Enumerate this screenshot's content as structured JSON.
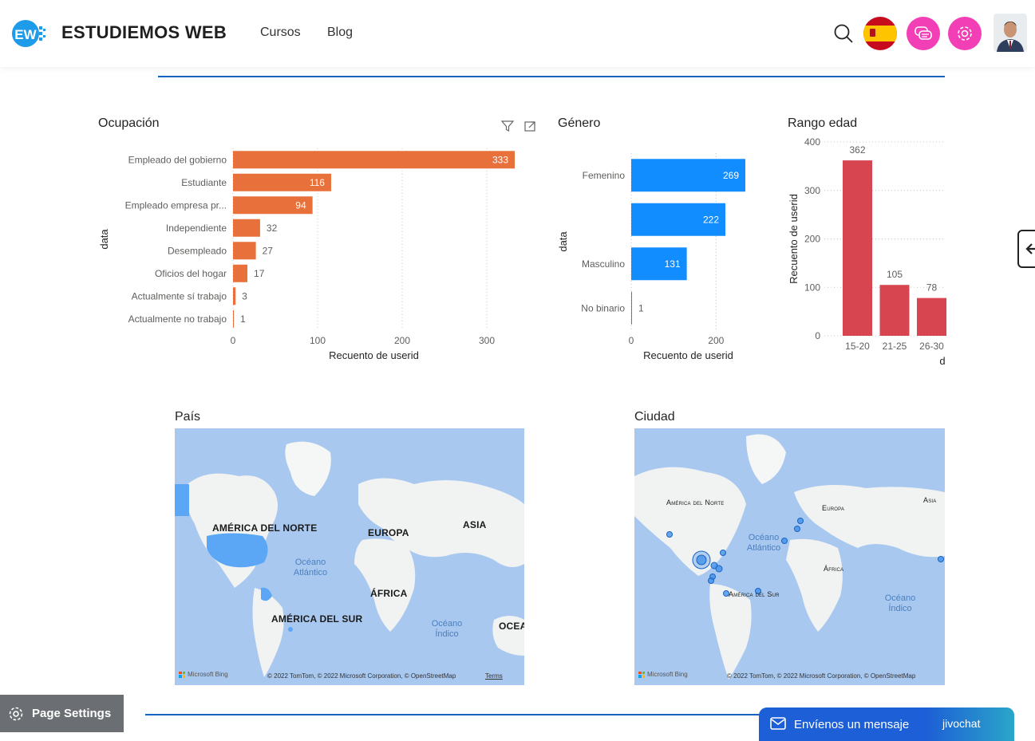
{
  "header": {
    "logo_text": "EW",
    "brand": "ESTUDIEMOS WEB",
    "nav": [
      {
        "label": "Cursos"
      },
      {
        "label": "Blog"
      }
    ],
    "icons": [
      "search-icon",
      "spain-flag-icon",
      "chat-icon",
      "settings-icon"
    ],
    "accent_pink": "#f23fb5"
  },
  "visuals": {
    "ocupacion": {
      "title": "Ocupación",
      "chart_data": {
        "type": "bar",
        "orientation": "horizontal",
        "categories": [
          "Empleado del gobierno",
          "Estudiante",
          "Empleado empresa pr...",
          "Independiente",
          "Desempleado",
          "Oficios del hogar",
          "Actualmente sí trabajo",
          "Actualmente no trabajo"
        ],
        "values": [
          333,
          116,
          94,
          32,
          27,
          17,
          3,
          1
        ],
        "xlabel": "Recuento de userid",
        "ylabel": "data",
        "xlim": [
          0,
          333
        ],
        "xticks": [
          0,
          100,
          200,
          300
        ],
        "color": "#e8703a"
      }
    },
    "genero": {
      "title": "Género",
      "chart_data": {
        "type": "bar",
        "orientation": "horizontal",
        "categories": [
          "Femenino",
          "",
          "Masculino",
          "No binario"
        ],
        "values": [
          269,
          222,
          131,
          1
        ],
        "xlabel": "Recuento de userid",
        "ylabel": "data",
        "xlim": [
          0,
          269
        ],
        "xticks": [
          0,
          200
        ],
        "color": "#118dff"
      }
    },
    "rango_edad": {
      "title": "Rango edad",
      "chart_data": {
        "type": "bar",
        "orientation": "vertical",
        "categories": [
          "15-20",
          "21-25",
          "26-30"
        ],
        "values": [
          362,
          105,
          78
        ],
        "ylabel": "Recuento de userid",
        "xlabel": "d",
        "ylim": [
          0,
          400
        ],
        "yticks": [
          0,
          100,
          200,
          300,
          400
        ],
        "color": "#d64550"
      }
    },
    "pais": {
      "title": "País",
      "labels": {
        "na": "AMÉRICA DEL NORTE",
        "eu": "EUROPA",
        "as": "ASIA",
        "af": "ÁFRICA",
        "sa": "AMÉRICA DEL SUR",
        "oc": "OCEA",
        "atl": "Océano Atlántico",
        "ind": "Océano Índico"
      },
      "attribution": "© 2022 TomTom, © 2022 Microsoft Corporation, © OpenStreetMap",
      "terms": "Terms",
      "bing": "Microsoft Bing"
    },
    "ciudad": {
      "title": "Ciudad",
      "labels": {
        "na": "América del Norte",
        "eu": "Europa",
        "as": "Asia",
        "af": "África",
        "sa": "América del Sur",
        "atl": "Océano Atlántico",
        "ind": "Océano Índico"
      },
      "attribution": "© 2022 TomTom, © 2022 Microsoft Corporation, © OpenStreetMap",
      "bing": "Microsoft Bing"
    }
  },
  "page_settings": {
    "label": "Page Settings"
  },
  "chat": {
    "label": "Envíenos un mensaje",
    "brand": "jivochat"
  }
}
